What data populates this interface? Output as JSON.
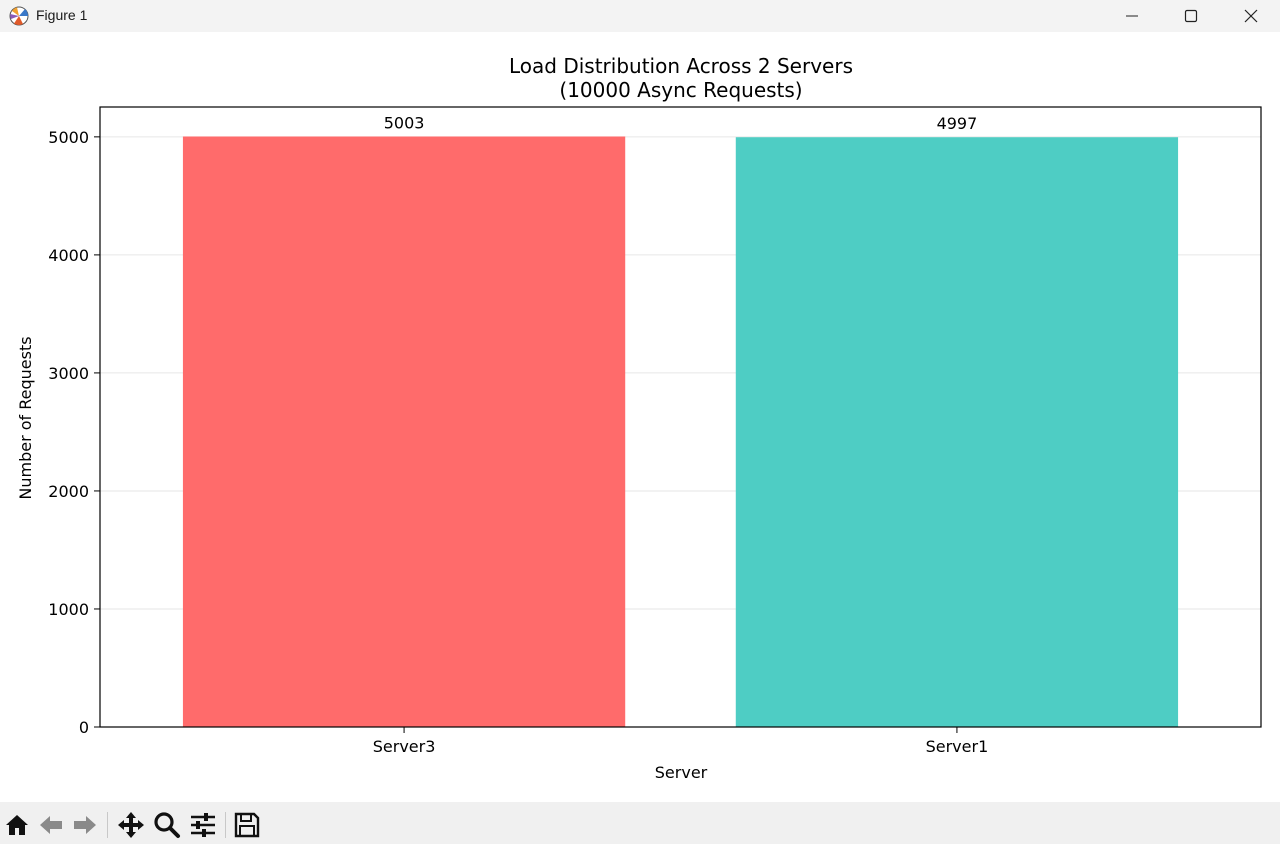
{
  "window": {
    "title": "Figure 1",
    "icon": "matplotlib-icon",
    "controls": [
      "minimize-icon",
      "maximize-icon",
      "close-icon"
    ]
  },
  "toolbar": {
    "buttons": [
      "home-icon",
      "back-arrow-icon",
      "forward-arrow-icon",
      "pan-icon",
      "zoom-icon",
      "configure-subplots-icon",
      "save-icon"
    ]
  },
  "chart_data": {
    "type": "bar",
    "title": "Load Distribution Across 2 Servers",
    "subtitle": "(10000 Async Requests)",
    "xlabel": "Server",
    "ylabel": "Number of Requests",
    "categories": [
      "Server3",
      "Server1"
    ],
    "values": [
      5003,
      4997
    ],
    "value_labels": [
      "5003",
      "4997"
    ],
    "colors": [
      "#ff6b6b",
      "#4ecdc4"
    ],
    "ylim": [
      0,
      5253
    ],
    "yticks": [
      0,
      1000,
      2000,
      3000,
      4000,
      5000
    ],
    "ytick_labels": [
      "0",
      "1000",
      "2000",
      "3000",
      "4000",
      "5000"
    ],
    "grid": "y"
  }
}
